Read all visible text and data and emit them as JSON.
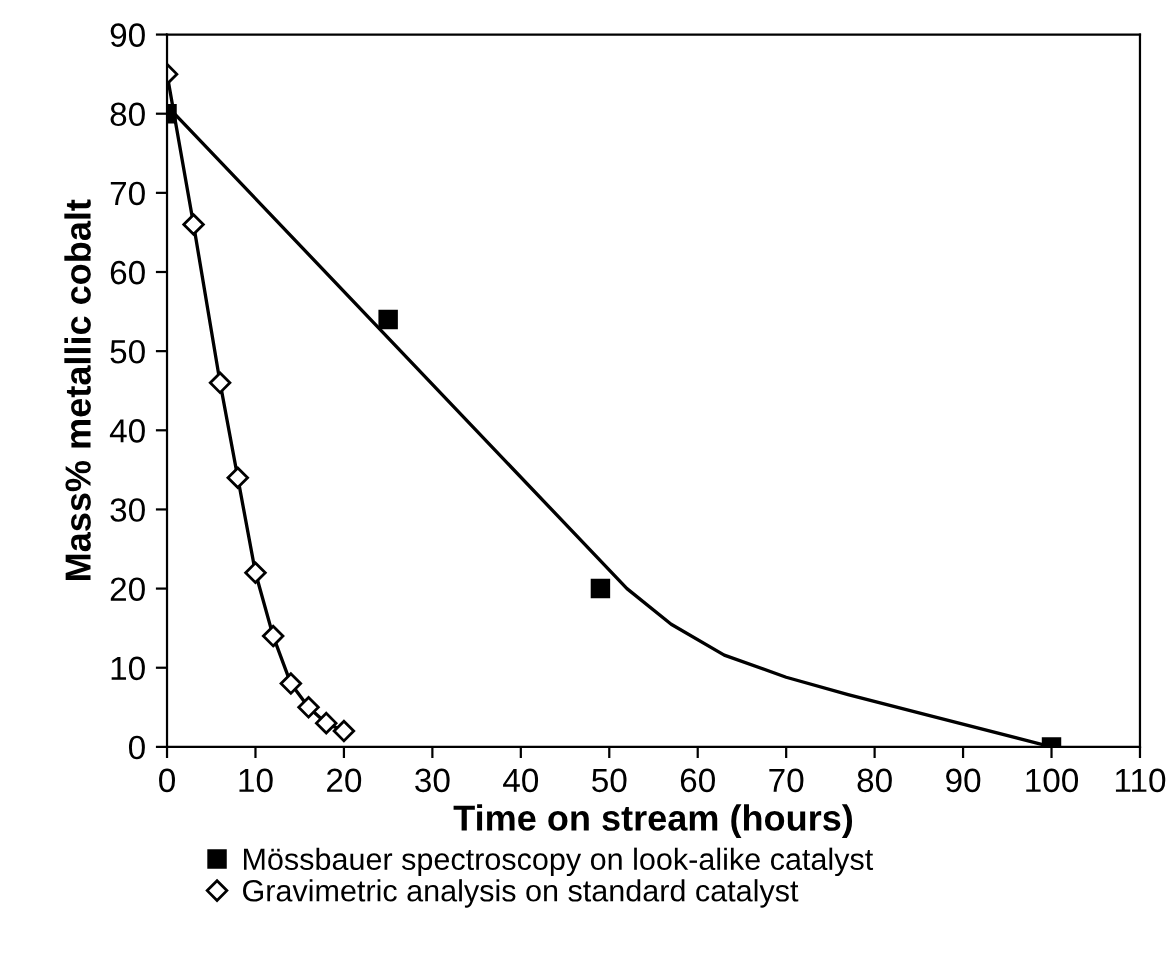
{
  "chart_data": {
    "type": "line",
    "xlabel": "Time on stream (hours)",
    "ylabel": "Mass% metallic cobalt",
    "xlim": [
      0,
      110
    ],
    "xticks": [
      0,
      10,
      20,
      30,
      40,
      50,
      60,
      70,
      80,
      90,
      100,
      110
    ],
    "ylim": [
      0,
      90
    ],
    "yticks": [
      0,
      10,
      20,
      30,
      40,
      50,
      60,
      70,
      80,
      90
    ],
    "grid": false,
    "legend": "bottom",
    "series": [
      {
        "name": "Mössbauer spectroscopy on look-alike catalyst",
        "type": "scatter",
        "marker": "square",
        "color": "#000000",
        "x": [
          0,
          25,
          49,
          100
        ],
        "values": [
          80,
          54,
          20,
          0
        ]
      },
      {
        "name": "Gravimetric analysis on standard catalyst",
        "marker": "diamond",
        "color": "#000000",
        "x": [
          0,
          3,
          6,
          8,
          10,
          12,
          14,
          16,
          18,
          20
        ],
        "values": [
          85,
          66,
          46,
          34,
          22,
          14,
          8,
          5,
          3,
          2
        ]
      },
      {
        "marker": "none",
        "color": "#000000",
        "x": [
          0,
          52,
          57,
          63,
          70,
          77,
          86,
          100
        ],
        "values": [
          81,
          20,
          15.5,
          11.6,
          8.8,
          6.6,
          4,
          0
        ]
      }
    ]
  }
}
